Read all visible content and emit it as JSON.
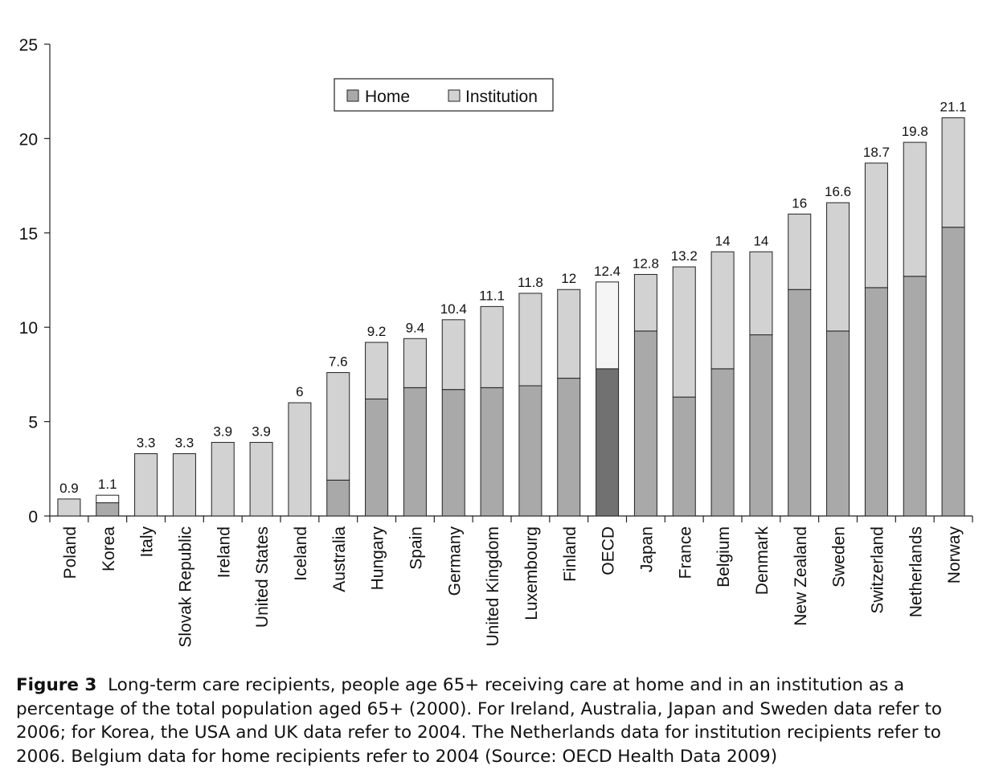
{
  "chart_data": {
    "type": "bar",
    "stacked": true,
    "categories": [
      "Poland",
      "Korea",
      "Italy",
      "Slovak Republic",
      "Ireland",
      "United States",
      "Iceland",
      "Australia",
      "Hungary",
      "Spain",
      "Germany",
      "United Kingdom",
      "Luxembourg",
      "Finland",
      "OECD",
      "Japan",
      "France",
      "Belgium",
      "Denmark",
      "New Zealand",
      "Sweden",
      "Switzerland",
      "Netherlands",
      "Norway"
    ],
    "totals": [
      0.9,
      1.1,
      3.3,
      3.3,
      3.9,
      3.9,
      6,
      7.6,
      9.2,
      9.4,
      10.4,
      11.1,
      11.8,
      12,
      12.4,
      12.8,
      13.2,
      14,
      14,
      16,
      16.6,
      18.7,
      19.8,
      21.1
    ],
    "total_labels": [
      "0.9",
      "1.1",
      "3.3",
      "3.3",
      "3.9",
      "3.9",
      "6",
      "7.6",
      "9.2",
      "9.4",
      "10.4",
      "11.1",
      "11.8",
      "12",
      "12.4",
      "12.8",
      "13.2",
      "14",
      "14",
      "16",
      "16.6",
      "18.7",
      "19.8",
      "21.1"
    ],
    "series": [
      {
        "name": "Home",
        "values": [
          0,
          0.7,
          0,
          0,
          0,
          0,
          0,
          1.9,
          6.2,
          6.8,
          6.7,
          6.8,
          6.9,
          7.3,
          7.8,
          9.8,
          6.3,
          7.8,
          9.6,
          12.0,
          9.8,
          12.1,
          12.7,
          15.3
        ]
      },
      {
        "name": "Institution",
        "values": [
          0.9,
          0.4,
          3.3,
          3.3,
          3.9,
          3.9,
          6,
          5.7,
          3.0,
          2.6,
          3.7,
          4.3,
          4.9,
          4.7,
          4.6,
          3.0,
          6.9,
          6.2,
          4.4,
          4.0,
          6.8,
          6.6,
          7.1,
          5.8
        ]
      }
    ],
    "highlight_category": "OECD",
    "ylim": [
      0,
      25
    ],
    "yticks": [
      "0",
      "5",
      "10",
      "15",
      "20",
      "25"
    ],
    "xlabel": "",
    "ylabel": "",
    "grid": false,
    "legend": {
      "placement": "top-center",
      "entries": [
        "Home",
        "Institution"
      ]
    },
    "colors": {
      "home": "#a9a9a9",
      "institution": "#d2d2d2",
      "oecd_home": "#717171",
      "oecd_institution": "#f5f5f5",
      "korea_institution": "#ffffff"
    }
  },
  "caption": {
    "label": "Figure 3",
    "text": "Long-term care recipients, people age 65+ receiving care at home and in an institution as a percentage of the total population aged 65+ (2000). For Ireland, Australia, Japan and Sweden data refer to 2006; for Korea, the USA and UK data refer to 2004. The Netherlands data for institution recipients refer to 2006. Belgium data for home recipients refer to 2004 (Source: OECD Health Data 2009)"
  }
}
